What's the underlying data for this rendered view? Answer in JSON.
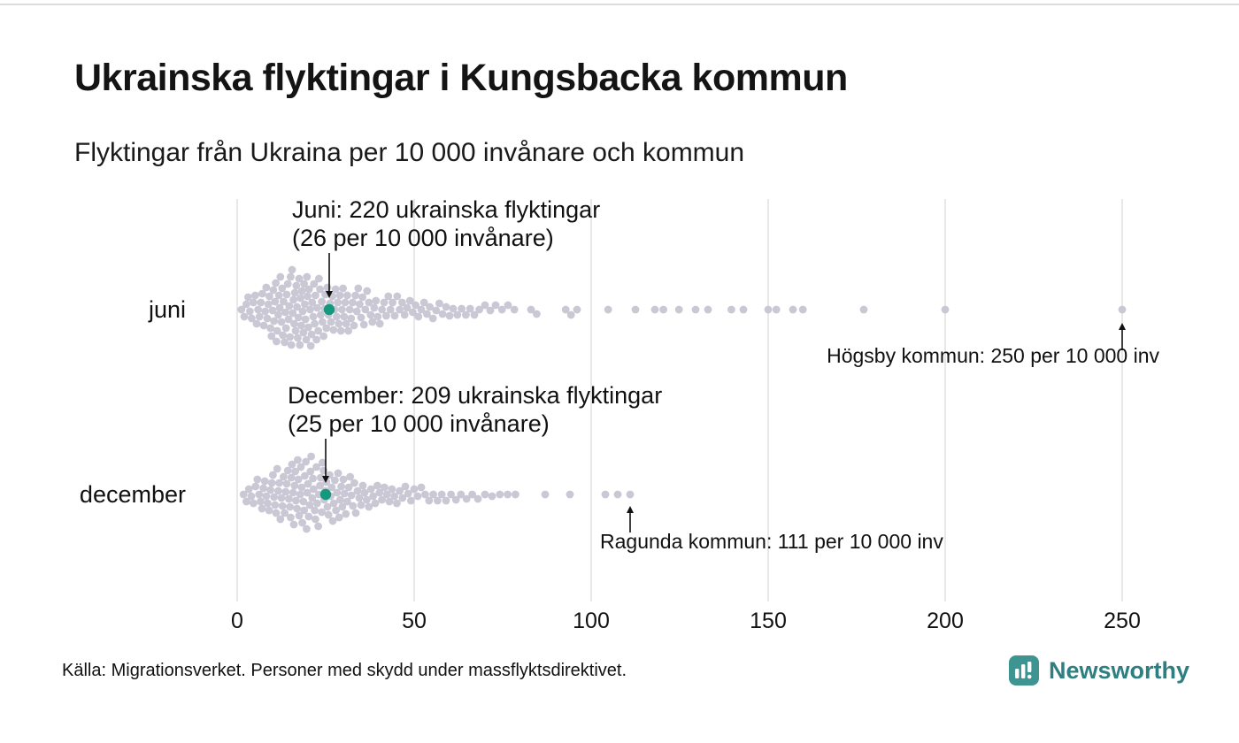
{
  "header": {
    "title": "Ukrainska flyktingar i Kungsbacka kommun",
    "subtitle": "Flyktingar från Ukraina per 10 000 invånare och kommun"
  },
  "chart_data": {
    "type": "scatter",
    "subtype": "beeswarm",
    "title": "Ukrainska flyktingar i Kungsbacka kommun",
    "subtitle": "Flyktingar från Ukraina per 10 000 invånare och kommun",
    "xlabel": "",
    "xlim": [
      0,
      250
    ],
    "x_ticks": [
      0,
      50,
      100,
      150,
      200,
      250
    ],
    "grid": "vertical",
    "colors": {
      "dot": "#c6c5d2",
      "highlight": "#14997e",
      "grid": "#d2d2d2"
    },
    "rows": [
      {
        "label": "juni",
        "highlight": {
          "value": 26
        },
        "values": [
          1.2,
          2,
          2.6,
          3.1,
          3.6,
          4.1,
          4.6,
          5.1,
          5.5,
          5.9,
          6.3,
          6.7,
          7.1,
          7.5,
          7.9,
          8.2,
          8.5,
          8.8,
          9.1,
          9.4,
          9.7,
          10,
          10.2,
          10.4,
          10.7,
          10.9,
          11.1,
          11.3,
          11.6,
          11.8,
          12,
          12.2,
          12.5,
          12.7,
          12.9,
          13.1,
          13.4,
          13.6,
          13.8,
          14,
          14.3,
          14.5,
          14.7,
          14.9,
          15.1,
          15.3,
          15.5,
          15.7,
          15.9,
          16.1,
          16.3,
          16.5,
          16.7,
          16.9,
          17.1,
          17.3,
          17.5,
          17.7,
          17.9,
          18.1,
          18.3,
          18.5,
          18.7,
          18.9,
          19.1,
          19.3,
          19.5,
          19.7,
          19.9,
          20.1,
          20.3,
          20.6,
          20.8,
          21,
          21.2,
          21.5,
          21.7,
          21.9,
          22.1,
          22.4,
          22.6,
          22.9,
          23.1,
          23.4,
          23.6,
          23.9,
          24.1,
          24.4,
          24.7,
          24.9,
          25.2,
          25.5,
          25.8,
          26.2,
          26.5,
          26.9,
          27.2,
          27.5,
          27.8,
          28.1,
          28.4,
          28.7,
          29,
          29.3,
          29.6,
          29.9,
          30.2,
          30.5,
          30.8,
          31.1,
          31.4,
          31.8,
          32.2,
          32.6,
          33,
          33.4,
          33.8,
          34.2,
          34.6,
          35,
          35.4,
          35.8,
          36.2,
          36.7,
          37.2,
          37.7,
          38.2,
          38.7,
          39.2,
          39.7,
          40.3,
          40.9,
          41.5,
          42.1,
          42.7,
          43.3,
          43.9,
          44.5,
          45.2,
          45.9,
          46.6,
          47.3,
          48,
          48.8,
          49.6,
          50.4,
          51.2,
          52,
          52.8,
          53.6,
          54.4,
          55.3,
          56.2,
          57.1,
          58,
          59,
          60,
          61,
          62.2,
          63.4,
          64.6,
          65.8,
          67,
          68.4,
          70,
          71.5,
          73,
          74.8,
          76.5,
          78.3,
          83,
          84.6,
          92.8,
          94.3,
          96,
          104.8,
          112.5,
          118,
          120.4,
          124.8,
          129.5,
          133,
          139.6,
          143,
          150,
          152.3,
          157,
          159.8,
          177,
          200,
          250
        ]
      },
      {
        "label": "december",
        "highlight": {
          "value": 25
        },
        "values": [
          1.8,
          2.6,
          3.3,
          4,
          4.6,
          5.2,
          5.7,
          6.2,
          6.6,
          7,
          7.4,
          7.8,
          8.2,
          8.6,
          9,
          9.4,
          9.8,
          10.1,
          10.4,
          10.7,
          11,
          11.3,
          11.6,
          11.9,
          12.2,
          12.5,
          12.8,
          13.1,
          13.4,
          13.7,
          14,
          14.3,
          14.6,
          14.9,
          15.1,
          15.3,
          15.5,
          15.8,
          16,
          16.2,
          16.4,
          16.6,
          16.9,
          17.1,
          17.3,
          17.5,
          17.8,
          18,
          18.2,
          18.4,
          18.7,
          18.9,
          19.1,
          19.4,
          19.6,
          19.8,
          20,
          20.2,
          20.5,
          20.7,
          20.9,
          21.2,
          21.4,
          21.6,
          21.9,
          22.1,
          22.4,
          22.6,
          22.9,
          23.1,
          23.4,
          23.6,
          23.9,
          24.1,
          24.4,
          24.6,
          24.9,
          25.2,
          25.5,
          25.8,
          26.1,
          26.4,
          26.7,
          27,
          27.3,
          27.6,
          27.9,
          28.2,
          28.5,
          28.8,
          29.1,
          29.4,
          29.7,
          30,
          30.3,
          30.7,
          31.1,
          31.5,
          31.9,
          32.3,
          32.7,
          33.1,
          33.5,
          34,
          34.5,
          35,
          35.5,
          36,
          36.6,
          37.2,
          37.8,
          38.4,
          39,
          39.6,
          40.2,
          40.9,
          41.6,
          42.3,
          43,
          43.7,
          44.4,
          45.1,
          45.9,
          46.7,
          47.5,
          48.3,
          49.1,
          50,
          51,
          52,
          53.1,
          54.2,
          55.4,
          56.6,
          57.8,
          59,
          60.4,
          61.8,
          63.2,
          64.8,
          66.4,
          68,
          70,
          72,
          74.2,
          76.4,
          78.6,
          87,
          94,
          104,
          107.5,
          111
        ]
      }
    ],
    "annotations": {
      "juni_highlight": {
        "line1": "Juni: 220 ukrainska flyktingar",
        "line2": "(26 per 10 000 invånare)",
        "value": 26
      },
      "december_highlight": {
        "line1": "December: 209 ukrainska flyktingar",
        "line2": "(25 per 10 000 invånare)",
        "value": 25
      },
      "hogsby": {
        "text": "Högsby kommun: 250 per 10 000 inv",
        "value": 250
      },
      "ragunda": {
        "text": "Ragunda kommun: 111 per 10 000 inv",
        "value": 111
      }
    }
  },
  "footer": {
    "source": "Källa: Migrationsverket. Personer med skydd under massflyktsdirektivet.",
    "brand": "Newsworthy"
  }
}
